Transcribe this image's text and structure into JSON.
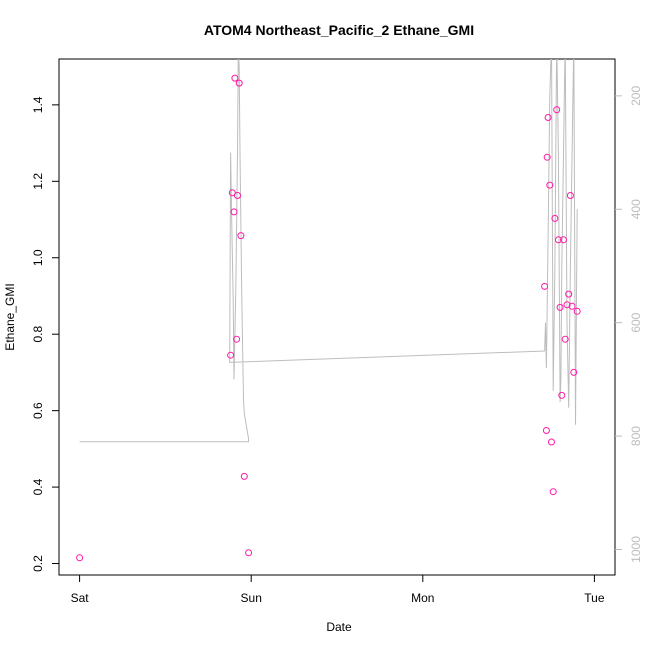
{
  "chart_data": {
    "type": "scatter",
    "title": "ATOM4 Northeast_Pacific_2 Ethane_GMI",
    "xlabel": "Date",
    "ylabel": "Ethane_GMI",
    "x_ticks": [
      {
        "label": "Sat",
        "value": 0
      },
      {
        "label": "Sun",
        "value": 1
      },
      {
        "label": "Mon",
        "value": 2
      },
      {
        "label": "Tue",
        "value": 3
      }
    ],
    "y_ticks": [
      0.2,
      0.4,
      0.6,
      0.8,
      1.0,
      1.2,
      1.4
    ],
    "y_tick_labels": [
      "0.2",
      "0.4",
      "0.6",
      "0.8",
      "1.0",
      "1.2",
      "1.4"
    ],
    "y_right_ticks": [
      200,
      400,
      600,
      800,
      1000
    ],
    "y_right_tick_labels": [
      "200",
      "400",
      "600",
      "800",
      "1000"
    ],
    "xlim": [
      -0.12,
      3.12
    ],
    "ylim": [
      0.17,
      1.52
    ],
    "y_right_lim": [
      1045,
      135
    ],
    "grid": false,
    "colors": {
      "points": "#ff1aa8",
      "pressure_line": "#bdbdbd",
      "axes": "#000000"
    },
    "series": [
      {
        "type": "scatter",
        "x": [
          0.0,
          0.88,
          0.89,
          0.9,
          0.905,
          0.915,
          0.92,
          0.93,
          0.94,
          0.96,
          0.985,
          2.71,
          2.72,
          2.725,
          2.73,
          2.74,
          2.75,
          2.76,
          2.77,
          2.78,
          2.79,
          2.8,
          2.81,
          2.82,
          2.83,
          2.84,
          2.85,
          2.86,
          2.87,
          2.88,
          2.9
        ],
        "y": [
          0.215,
          0.745,
          1.17,
          1.12,
          1.47,
          0.787,
          1.163,
          1.457,
          1.058,
          0.428,
          0.228,
          0.925,
          0.548,
          1.263,
          1.367,
          1.19,
          0.518,
          0.388,
          1.103,
          1.387,
          1.047,
          0.87,
          0.64,
          1.047,
          0.787,
          0.877,
          0.905,
          1.163,
          0.873,
          0.7,
          0.86
        ]
      },
      {
        "type": "line",
        "axis": "right",
        "x": [
          0.0,
          0.985,
          0.985,
          0.96,
          0.955,
          0.945,
          0.935,
          0.93,
          0.925,
          0.92,
          0.91,
          0.9,
          0.895,
          0.885,
          0.88,
          0.875,
          2.71,
          2.715,
          2.72,
          2.73,
          2.74,
          2.75,
          2.76,
          2.77,
          2.78,
          2.79,
          2.8,
          2.805,
          2.81,
          2.82,
          2.83,
          2.84,
          2.85,
          2.86,
          2.87,
          2.88,
          2.89,
          2.9
        ],
        "y": [
          810,
          810,
          805,
          760,
          735,
          560,
          300,
          150,
          120,
          300,
          540,
          700,
          560,
          400,
          300,
          670,
          650,
          600,
          680,
          450,
          200,
          100,
          720,
          500,
          100,
          300,
          740,
          700,
          500,
          300,
          100,
          600,
          750,
          500,
          300,
          100,
          780,
          400
        ]
      }
    ]
  }
}
